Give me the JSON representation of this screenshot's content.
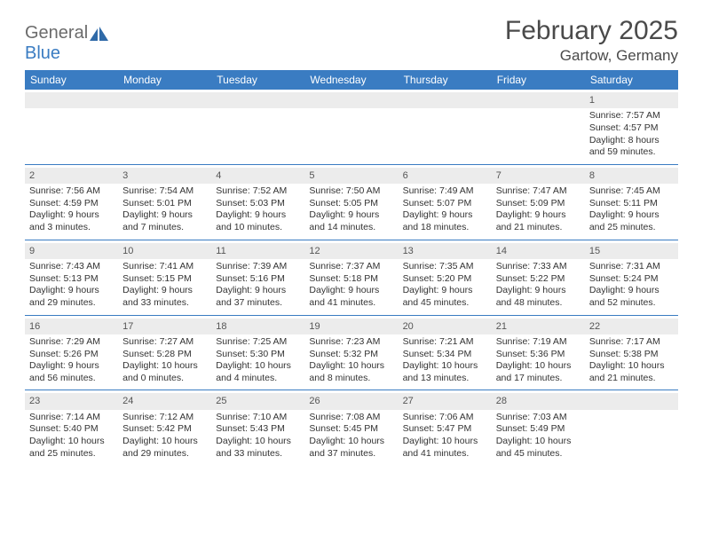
{
  "logo": {
    "general": "General",
    "blue": "Blue"
  },
  "title": "February 2025",
  "location": "Gartow, Germany",
  "colors": {
    "header_bg": "#3a7cc2",
    "header_text": "#ffffff",
    "daynum_bg": "#ececec",
    "border": "#3a7cc2",
    "text": "#333333",
    "logo_gray": "#6b6b6b",
    "logo_blue": "#3a7cc2"
  },
  "weekdays": [
    "Sunday",
    "Monday",
    "Tuesday",
    "Wednesday",
    "Thursday",
    "Friday",
    "Saturday"
  ],
  "weeks": [
    [
      {
        "n": "",
        "sr": "",
        "ss": "",
        "dl": ""
      },
      {
        "n": "",
        "sr": "",
        "ss": "",
        "dl": ""
      },
      {
        "n": "",
        "sr": "",
        "ss": "",
        "dl": ""
      },
      {
        "n": "",
        "sr": "",
        "ss": "",
        "dl": ""
      },
      {
        "n": "",
        "sr": "",
        "ss": "",
        "dl": ""
      },
      {
        "n": "",
        "sr": "",
        "ss": "",
        "dl": ""
      },
      {
        "n": "1",
        "sr": "Sunrise: 7:57 AM",
        "ss": "Sunset: 4:57 PM",
        "dl": "Daylight: 8 hours and 59 minutes."
      }
    ],
    [
      {
        "n": "2",
        "sr": "Sunrise: 7:56 AM",
        "ss": "Sunset: 4:59 PM",
        "dl": "Daylight: 9 hours and 3 minutes."
      },
      {
        "n": "3",
        "sr": "Sunrise: 7:54 AM",
        "ss": "Sunset: 5:01 PM",
        "dl": "Daylight: 9 hours and 7 minutes."
      },
      {
        "n": "4",
        "sr": "Sunrise: 7:52 AM",
        "ss": "Sunset: 5:03 PM",
        "dl": "Daylight: 9 hours and 10 minutes."
      },
      {
        "n": "5",
        "sr": "Sunrise: 7:50 AM",
        "ss": "Sunset: 5:05 PM",
        "dl": "Daylight: 9 hours and 14 minutes."
      },
      {
        "n": "6",
        "sr": "Sunrise: 7:49 AM",
        "ss": "Sunset: 5:07 PM",
        "dl": "Daylight: 9 hours and 18 minutes."
      },
      {
        "n": "7",
        "sr": "Sunrise: 7:47 AM",
        "ss": "Sunset: 5:09 PM",
        "dl": "Daylight: 9 hours and 21 minutes."
      },
      {
        "n": "8",
        "sr": "Sunrise: 7:45 AM",
        "ss": "Sunset: 5:11 PM",
        "dl": "Daylight: 9 hours and 25 minutes."
      }
    ],
    [
      {
        "n": "9",
        "sr": "Sunrise: 7:43 AM",
        "ss": "Sunset: 5:13 PM",
        "dl": "Daylight: 9 hours and 29 minutes."
      },
      {
        "n": "10",
        "sr": "Sunrise: 7:41 AM",
        "ss": "Sunset: 5:15 PM",
        "dl": "Daylight: 9 hours and 33 minutes."
      },
      {
        "n": "11",
        "sr": "Sunrise: 7:39 AM",
        "ss": "Sunset: 5:16 PM",
        "dl": "Daylight: 9 hours and 37 minutes."
      },
      {
        "n": "12",
        "sr": "Sunrise: 7:37 AM",
        "ss": "Sunset: 5:18 PM",
        "dl": "Daylight: 9 hours and 41 minutes."
      },
      {
        "n": "13",
        "sr": "Sunrise: 7:35 AM",
        "ss": "Sunset: 5:20 PM",
        "dl": "Daylight: 9 hours and 45 minutes."
      },
      {
        "n": "14",
        "sr": "Sunrise: 7:33 AM",
        "ss": "Sunset: 5:22 PM",
        "dl": "Daylight: 9 hours and 48 minutes."
      },
      {
        "n": "15",
        "sr": "Sunrise: 7:31 AM",
        "ss": "Sunset: 5:24 PM",
        "dl": "Daylight: 9 hours and 52 minutes."
      }
    ],
    [
      {
        "n": "16",
        "sr": "Sunrise: 7:29 AM",
        "ss": "Sunset: 5:26 PM",
        "dl": "Daylight: 9 hours and 56 minutes."
      },
      {
        "n": "17",
        "sr": "Sunrise: 7:27 AM",
        "ss": "Sunset: 5:28 PM",
        "dl": "Daylight: 10 hours and 0 minutes."
      },
      {
        "n": "18",
        "sr": "Sunrise: 7:25 AM",
        "ss": "Sunset: 5:30 PM",
        "dl": "Daylight: 10 hours and 4 minutes."
      },
      {
        "n": "19",
        "sr": "Sunrise: 7:23 AM",
        "ss": "Sunset: 5:32 PM",
        "dl": "Daylight: 10 hours and 8 minutes."
      },
      {
        "n": "20",
        "sr": "Sunrise: 7:21 AM",
        "ss": "Sunset: 5:34 PM",
        "dl": "Daylight: 10 hours and 13 minutes."
      },
      {
        "n": "21",
        "sr": "Sunrise: 7:19 AM",
        "ss": "Sunset: 5:36 PM",
        "dl": "Daylight: 10 hours and 17 minutes."
      },
      {
        "n": "22",
        "sr": "Sunrise: 7:17 AM",
        "ss": "Sunset: 5:38 PM",
        "dl": "Daylight: 10 hours and 21 minutes."
      }
    ],
    [
      {
        "n": "23",
        "sr": "Sunrise: 7:14 AM",
        "ss": "Sunset: 5:40 PM",
        "dl": "Daylight: 10 hours and 25 minutes."
      },
      {
        "n": "24",
        "sr": "Sunrise: 7:12 AM",
        "ss": "Sunset: 5:42 PM",
        "dl": "Daylight: 10 hours and 29 minutes."
      },
      {
        "n": "25",
        "sr": "Sunrise: 7:10 AM",
        "ss": "Sunset: 5:43 PM",
        "dl": "Daylight: 10 hours and 33 minutes."
      },
      {
        "n": "26",
        "sr": "Sunrise: 7:08 AM",
        "ss": "Sunset: 5:45 PM",
        "dl": "Daylight: 10 hours and 37 minutes."
      },
      {
        "n": "27",
        "sr": "Sunrise: 7:06 AM",
        "ss": "Sunset: 5:47 PM",
        "dl": "Daylight: 10 hours and 41 minutes."
      },
      {
        "n": "28",
        "sr": "Sunrise: 7:03 AM",
        "ss": "Sunset: 5:49 PM",
        "dl": "Daylight: 10 hours and 45 minutes."
      },
      {
        "n": "",
        "sr": "",
        "ss": "",
        "dl": ""
      }
    ]
  ]
}
